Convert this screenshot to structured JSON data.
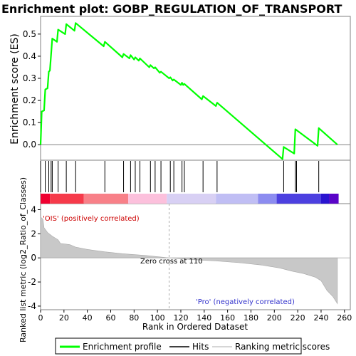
{
  "chart_data": {
    "type": "line",
    "title": "Enrichment plot: GOBP_REGULATION_OF_TRANSPORT",
    "colors": {
      "es_line": "#00ff00",
      "hit": "#000000",
      "metric_fill": "#c8c8c8",
      "zero_line": "#808080",
      "pos_text": "#cc0000",
      "neg_text": "#3333cc",
      "frame": "#808080"
    },
    "top_panel": {
      "ylabel": "Enrichment score (ES)",
      "ylim": [
        -0.07,
        0.58
      ],
      "yticks": [
        0.0,
        0.1,
        0.2,
        0.3,
        0.4,
        0.5
      ],
      "ytick_labels": [
        "0.0",
        "0.1",
        "0.2",
        "0.3",
        "0.4",
        "0.5"
      ],
      "es_points": [
        [
          0,
          0.0
        ],
        [
          1,
          0.15
        ],
        [
          3,
          0.155
        ],
        [
          4,
          0.25
        ],
        [
          6,
          0.255
        ],
        [
          7,
          0.33
        ],
        [
          8,
          0.335
        ],
        [
          10,
          0.48
        ],
        [
          14,
          0.465
        ],
        [
          15,
          0.52
        ],
        [
          21,
          0.5
        ],
        [
          22,
          0.545
        ],
        [
          29,
          0.515
        ],
        [
          30,
          0.55
        ],
        [
          54,
          0.445
        ],
        [
          55,
          0.465
        ],
        [
          70,
          0.395
        ],
        [
          71,
          0.41
        ],
        [
          76,
          0.39
        ],
        [
          77,
          0.405
        ],
        [
          80,
          0.385
        ],
        [
          81,
          0.395
        ],
        [
          84,
          0.38
        ],
        [
          85,
          0.39
        ],
        [
          93,
          0.35
        ],
        [
          94,
          0.36
        ],
        [
          97,
          0.345
        ],
        [
          98,
          0.35
        ],
        [
          102,
          0.325
        ],
        [
          103,
          0.33
        ],
        [
          110,
          0.3
        ],
        [
          111,
          0.305
        ],
        [
          113,
          0.29
        ],
        [
          114,
          0.295
        ],
        [
          120,
          0.27
        ],
        [
          121,
          0.28
        ],
        [
          122,
          0.27
        ],
        [
          123,
          0.275
        ],
        [
          138,
          0.205
        ],
        [
          139,
          0.22
        ],
        [
          150,
          0.175
        ],
        [
          151,
          0.19
        ],
        [
          207,
          -0.065
        ],
        [
          208,
          -0.01
        ],
        [
          217,
          -0.04
        ],
        [
          218,
          0.07
        ],
        [
          237,
          -0.005
        ],
        [
          238,
          0.075
        ],
        [
          254,
          0.0
        ]
      ]
    },
    "hits": [
      0,
      4,
      7,
      9,
      10,
      15,
      22,
      30,
      55,
      71,
      77,
      81,
      85,
      94,
      98,
      103,
      111,
      114,
      121,
      123,
      139,
      151,
      208,
      218,
      219,
      238
    ],
    "x_total": 255,
    "bottom_panel": {
      "ylabel": "Ranked list metric (log2_Ratio_of_Classes)",
      "ylim": [
        -4.3,
        4.5
      ],
      "yticks": [
        4,
        2,
        0,
        -2,
        -4
      ],
      "ytick_labels": [
        "4",
        "2",
        "0",
        "-2",
        "-4"
      ],
      "metric_points": [
        [
          0,
          3.4
        ],
        [
          2,
          3.2
        ],
        [
          3,
          2.5
        ],
        [
          6,
          2.1
        ],
        [
          10,
          1.8
        ],
        [
          15,
          1.5
        ],
        [
          17,
          1.2
        ],
        [
          25,
          1.1
        ],
        [
          30,
          0.9
        ],
        [
          40,
          0.7
        ],
        [
          55,
          0.5
        ],
        [
          70,
          0.35
        ],
        [
          90,
          0.2
        ],
        [
          110,
          0.0
        ],
        [
          130,
          -0.15
        ],
        [
          150,
          -0.25
        ],
        [
          170,
          -0.4
        ],
        [
          190,
          -0.6
        ],
        [
          205,
          -0.85
        ],
        [
          215,
          -1.1
        ],
        [
          225,
          -1.3
        ],
        [
          235,
          -1.6
        ],
        [
          240,
          -1.9
        ],
        [
          245,
          -2.7
        ],
        [
          250,
          -3.2
        ],
        [
          254,
          -3.8
        ]
      ],
      "zero_cross_label": "Zero cross at 110",
      "zero_cross": 110,
      "pos_label": "'OIS' (positively correlated)",
      "neg_label": "'Pro' (negatively correlated)"
    },
    "xaxis": {
      "xlabel": "Rank in Ordered Dataset",
      "xlim": [
        0,
        265
      ],
      "xticks": [
        0,
        20,
        40,
        60,
        80,
        100,
        120,
        140,
        160,
        180,
        200,
        220,
        240,
        260
      ],
      "xtick_labels": [
        "0",
        "20",
        "40",
        "60",
        "80",
        "100",
        "120",
        "140",
        "160",
        "180",
        "200",
        "220",
        "240",
        "260"
      ]
    },
    "color_bar_segments": [
      {
        "from": 0,
        "to": 8,
        "color": "#f00030"
      },
      {
        "from": 8,
        "to": 37,
        "color": "#f63a4a"
      },
      {
        "from": 37,
        "to": 75,
        "color": "#f88088"
      },
      {
        "from": 75,
        "to": 108,
        "color": "#fcc0dc"
      },
      {
        "from": 108,
        "to": 150,
        "color": "#d8d0f4"
      },
      {
        "from": 150,
        "to": 186,
        "color": "#c0bef4"
      },
      {
        "from": 186,
        "to": 202,
        "color": "#8c8cf0"
      },
      {
        "from": 202,
        "to": 240,
        "color": "#4c40e0"
      },
      {
        "from": 240,
        "to": 247,
        "color": "#2a14d0"
      },
      {
        "from": 247,
        "to": 255,
        "color": "#5a04c8"
      }
    ],
    "legend": {
      "items": [
        {
          "label": "Enrichment profile",
          "color": "#00ff00",
          "kind": "line"
        },
        {
          "label": "Hits",
          "color": "#000000",
          "kind": "line"
        },
        {
          "label": "Ranking metric scores",
          "color": "#c8c8c8",
          "kind": "line"
        }
      ]
    }
  }
}
